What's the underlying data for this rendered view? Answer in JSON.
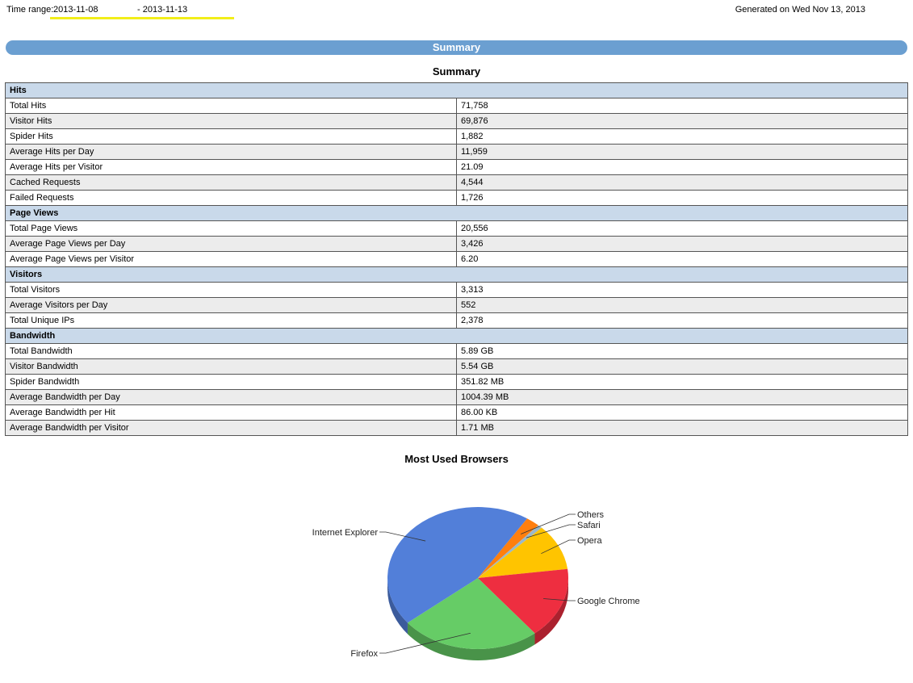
{
  "header": {
    "time_range_label": "Time range:",
    "date_from": "2013-11-08",
    "date_to": "- 2013-11-13",
    "generated": "Generated on Wed Nov 13, 2013"
  },
  "banner": {
    "title": "Summary"
  },
  "summary": {
    "title": "Summary",
    "rows": [
      {
        "kind": "section",
        "label": "Hits"
      },
      {
        "kind": "row",
        "label": "Total Hits",
        "value": "71,758"
      },
      {
        "kind": "row",
        "label": "Visitor Hits",
        "value": "69,876"
      },
      {
        "kind": "row",
        "label": "Spider Hits",
        "value": "1,882"
      },
      {
        "kind": "row",
        "label": "Average Hits per Day",
        "value": "11,959"
      },
      {
        "kind": "row",
        "label": "Average Hits per Visitor",
        "value": "21.09"
      },
      {
        "kind": "row",
        "label": "Cached Requests",
        "value": "4,544"
      },
      {
        "kind": "row",
        "label": "Failed Requests",
        "value": "1,726"
      },
      {
        "kind": "section",
        "label": "Page Views"
      },
      {
        "kind": "row",
        "label": "Total Page Views",
        "value": "20,556"
      },
      {
        "kind": "row",
        "label": "Average Page Views per Day",
        "value": "3,426"
      },
      {
        "kind": "row",
        "label": "Average Page Views per Visitor",
        "value": "6.20"
      },
      {
        "kind": "section",
        "label": "Visitors"
      },
      {
        "kind": "row",
        "label": "Total Visitors",
        "value": "3,313"
      },
      {
        "kind": "row",
        "label": "Average Visitors per Day",
        "value": "552"
      },
      {
        "kind": "row",
        "label": "Total Unique IPs",
        "value": "2,378"
      },
      {
        "kind": "section",
        "label": "Bandwidth"
      },
      {
        "kind": "row",
        "label": "Total Bandwidth",
        "value": "5.89 GB"
      },
      {
        "kind": "row",
        "label": "Visitor Bandwidth",
        "value": "5.54 GB"
      },
      {
        "kind": "row",
        "label": "Spider Bandwidth",
        "value": "351.82 MB"
      },
      {
        "kind": "row",
        "label": "Average Bandwidth per Day",
        "value": "1004.39 MB"
      },
      {
        "kind": "row",
        "label": "Average Bandwidth per Hit",
        "value": "86.00 KB"
      },
      {
        "kind": "row",
        "label": "Average Bandwidth per Visitor",
        "value": "1.71 MB"
      }
    ]
  },
  "chart_data": {
    "type": "pie",
    "title": "Most Used Browsers",
    "slices": [
      {
        "label": "Others",
        "value": 2.5,
        "color": "#ff7f0e"
      },
      {
        "label": "Safari",
        "value": 0.8,
        "color": "#9ab8c9"
      },
      {
        "label": "Opera",
        "value": 10.5,
        "color": "#ffc400"
      },
      {
        "label": "Google Chrome",
        "value": 16.2,
        "color": "#ee2e40"
      },
      {
        "label": "Firefox",
        "value": 25.0,
        "color": "#66cc66"
      },
      {
        "label": "Internet Explorer",
        "value": 45.0,
        "color": "#527fd9"
      }
    ]
  }
}
